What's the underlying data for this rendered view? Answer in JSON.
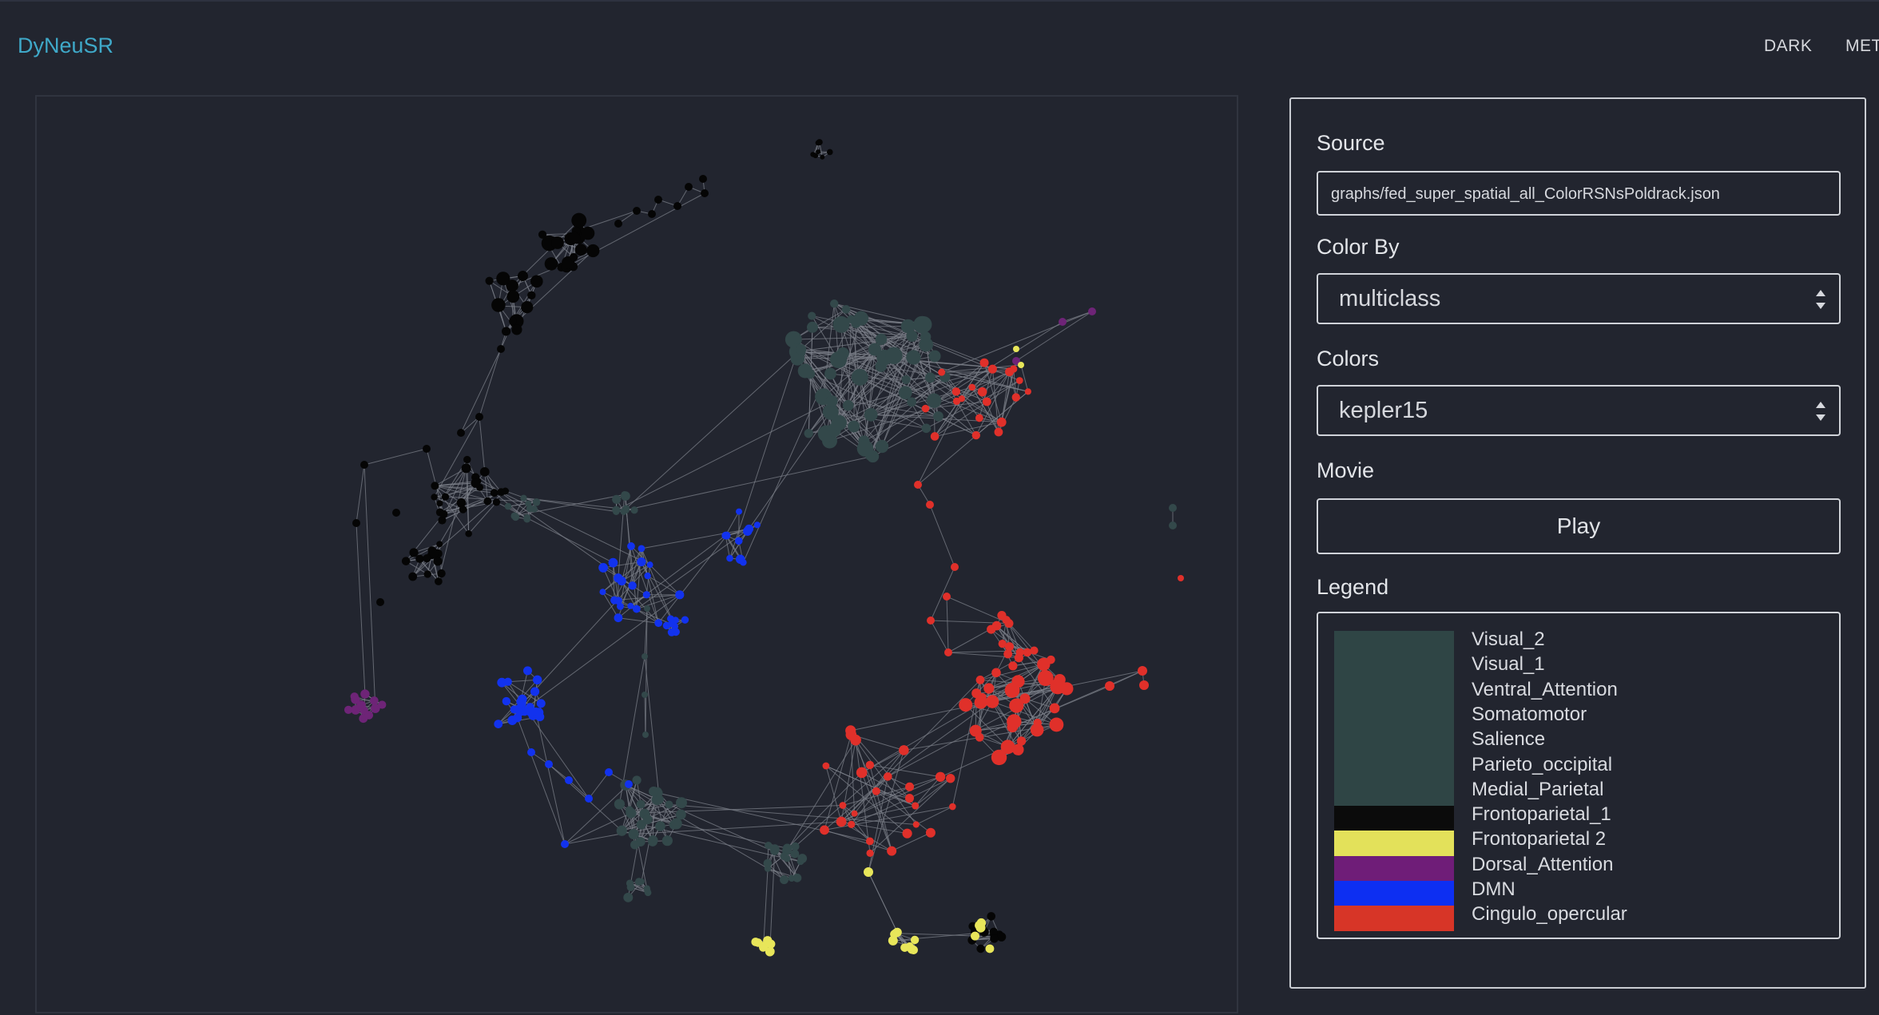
{
  "app": {
    "title": "DyNeuSR"
  },
  "nav": {
    "dark_label": "DARK",
    "meta_label": "MET"
  },
  "controls": {
    "source_label": "Source",
    "source_value": "graphs/fed_super_spatial_all_ColorRSNsPoldrack.json",
    "color_by_label": "Color By",
    "color_by_value": "multiclass",
    "colors_label": "Colors",
    "colors_value": "kepler15",
    "movie_label": "Movie",
    "play_label": "Play",
    "legend_label": "Legend"
  },
  "legend": [
    {
      "label": "Visual_2",
      "color": "#2f4545"
    },
    {
      "label": "Visual_1",
      "color": "#2f4545"
    },
    {
      "label": "Ventral_Attention",
      "color": "#2f4545"
    },
    {
      "label": "Somatomotor",
      "color": "#2f4545"
    },
    {
      "label": "Salience",
      "color": "#2f4545"
    },
    {
      "label": "Parieto_occipital",
      "color": "#2f4545"
    },
    {
      "label": "Medial_Parietal",
      "color": "#2f4545"
    },
    {
      "label": "Frontoparietal_1",
      "color": "#0b0b0b"
    },
    {
      "label": "Frontoparietal 2",
      "color": "#e3e15a"
    },
    {
      "label": "Dorsal_Attention",
      "color": "#6f1d78"
    },
    {
      "label": "DMN",
      "color": "#0d2ff2"
    },
    {
      "label": "Cingulo_opercular",
      "color": "#d73527"
    }
  ],
  "graph_colors": {
    "teal": "#33484a",
    "black": "#050505",
    "blue": "#1232ee",
    "red": "#e0302a",
    "yellow": "#e8e65a",
    "purple": "#6e2477",
    "edge": "#7b7f88"
  }
}
